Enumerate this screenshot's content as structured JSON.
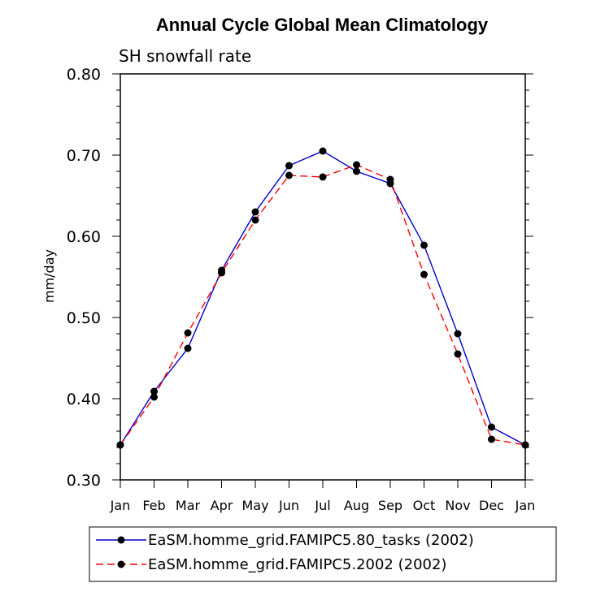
{
  "chart_data": {
    "type": "line",
    "title": "Annual Cycle Global Mean Climatology",
    "subtitle": "SH snowfall rate",
    "xlabel": "",
    "ylabel": "mm/day",
    "categories": [
      "Jan",
      "Feb",
      "Mar",
      "Apr",
      "May",
      "Jun",
      "Jul",
      "Aug",
      "Sep",
      "Oct",
      "Nov",
      "Dec",
      "Jan"
    ],
    "ylim": [
      0.3,
      0.8
    ],
    "yticks": [
      "0.30",
      "0.40",
      "0.50",
      "0.60",
      "0.70",
      "0.80"
    ],
    "series": [
      {
        "name": "EaSM.homme_grid.FAMIPC5.80_tasks (2002)",
        "color": "#0000cc",
        "dash": "solid",
        "values": [
          0.343,
          0.409,
          0.462,
          0.558,
          0.63,
          0.687,
          0.705,
          0.68,
          0.665,
          0.589,
          0.48,
          0.365,
          0.343
        ]
      },
      {
        "name": "EaSM.homme_grid.FAMIPC5.2002 (2002)",
        "color": "#ff0000",
        "dash": "dashed",
        "values": [
          0.343,
          0.402,
          0.481,
          0.555,
          0.62,
          0.675,
          0.673,
          0.688,
          0.67,
          0.553,
          0.455,
          0.35,
          0.343
        ]
      }
    ],
    "legend": "bottom"
  }
}
